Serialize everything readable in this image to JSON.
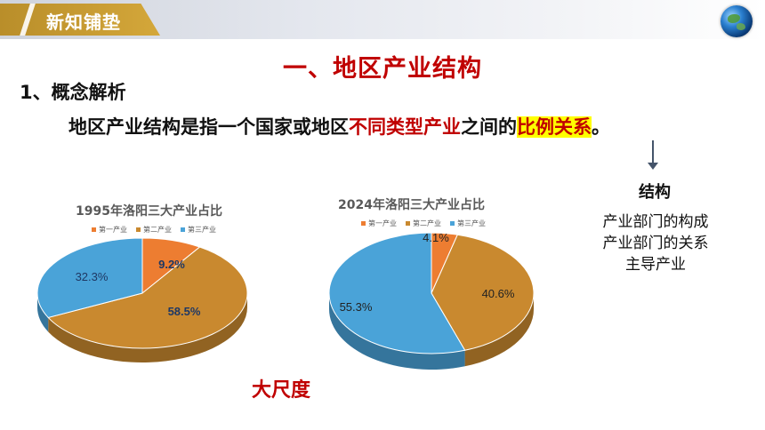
{
  "header": {
    "title": "新知铺垫"
  },
  "main_title": "一、地区产业结构",
  "section": {
    "label": "1、概念解析"
  },
  "definition": {
    "part1": "地区产业结构是指一个国家或地区",
    "part2": "不同类型产业",
    "part3": "之间的",
    "part4": "比例关系",
    "part5": "。"
  },
  "structure": {
    "title": "结构",
    "items": [
      "产业部门的构成",
      "产业部门的关系",
      "主导产业"
    ]
  },
  "emphasis": "大尺度",
  "colors": {
    "primary": "#ed7d31",
    "secondary": "#c9892f",
    "tertiary": "#4aa3d8"
  },
  "chart_data": [
    {
      "type": "pie",
      "title": "1995年洛阳三大产业占比",
      "legend": [
        "第一产业",
        "第二产业",
        "第三产业"
      ],
      "values": [
        9.2,
        58.5,
        32.3
      ],
      "labels": [
        "9.2%",
        "58.5%",
        "32.3%"
      ]
    },
    {
      "type": "pie",
      "title": "2024年洛阳三大产业占比",
      "legend": [
        "第一产业",
        "第二产业",
        "第三产业"
      ],
      "values": [
        4.1,
        40.6,
        55.3
      ],
      "labels": [
        "4.1%",
        "40.6%",
        "55.3%"
      ]
    }
  ]
}
